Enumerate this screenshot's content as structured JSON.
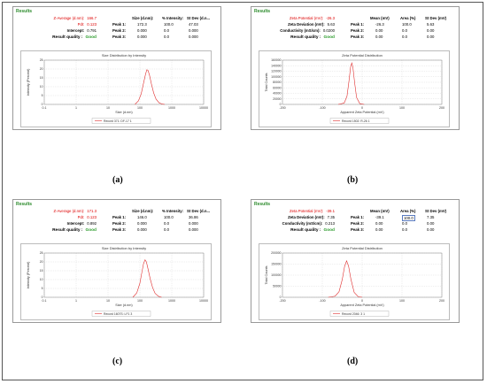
{
  "panels": [
    {
      "id": "a",
      "caption": "(a)",
      "header": "Results",
      "summary_left": [
        {
          "label": "Z-Average (d.nm):",
          "value": "166.7",
          "red": true
        },
        {
          "label": "PdI:",
          "value": "0.123",
          "red": true
        },
        {
          "label": "Intercept:",
          "value": "0.791",
          "red": false
        },
        {
          "label": "Result quality :",
          "value": "Good",
          "quality": true
        }
      ],
      "table_headers": [
        "Size (d.nm):",
        "% Intensity:",
        "St Dev (d.n..."
      ],
      "table_rows": [
        {
          "label": "Peak 1:",
          "cells": [
            "172.3",
            "100.0",
            "47.03"
          ]
        },
        {
          "label": "Peak 2:",
          "cells": [
            "0.000",
            "0.0",
            "0.000"
          ]
        },
        {
          "label": "Peak 3:",
          "cells": [
            "0.000",
            "0.0",
            "0.000"
          ]
        }
      ]
    },
    {
      "id": "b",
      "caption": "(b)",
      "header": "Results",
      "summary_left": [
        {
          "label": "Zeta Potential (mV):",
          "value": "-26.3",
          "red": true
        },
        {
          "label": "Zeta Deviation (mV):",
          "value": "5.63",
          "red": false
        },
        {
          "label": "Conductivity (mS/cm):",
          "value": "0.0200",
          "red": false
        },
        {
          "label": "Result quality :",
          "value": "Good",
          "quality": true
        }
      ],
      "table_headers": [
        "Mean (mV)",
        "Area (%)",
        "St Dev (mV)"
      ],
      "table_rows": [
        {
          "label": "Peak 1:",
          "cells": [
            "-26.3",
            "100.0",
            "5.63"
          ]
        },
        {
          "label": "Peak 2:",
          "cells": [
            "0.00",
            "0.0",
            "0.00"
          ]
        },
        {
          "label": "Peak 3:",
          "cells": [
            "0.00",
            "0.0",
            "0.00"
          ]
        }
      ]
    },
    {
      "id": "c",
      "caption": "(c)",
      "header": "Results",
      "summary_left": [
        {
          "label": "Z-Average (d.nm):",
          "value": "171.3",
          "red": true
        },
        {
          "label": "PdI:",
          "value": "0.123",
          "red": true
        },
        {
          "label": "Intercept:",
          "value": "0.892",
          "red": false
        },
        {
          "label": "Result quality :",
          "value": "Good",
          "quality": true
        }
      ],
      "table_headers": [
        "Size (d.nm):",
        "% Intensity:",
        "St Dev (d.n..."
      ],
      "table_rows": [
        {
          "label": "Peak 1:",
          "cells": [
            "146.0",
            "100.0",
            "36.86"
          ]
        },
        {
          "label": "Peak 2:",
          "cells": [
            "0.000",
            "0.0",
            "0.000"
          ]
        },
        {
          "label": "Peak 3:",
          "cells": [
            "0.000",
            "0.0",
            "0.000"
          ]
        }
      ]
    },
    {
      "id": "d",
      "caption": "(d)",
      "header": "Results",
      "summary_left": [
        {
          "label": "Zeta Potential (mV):",
          "value": "-39.1",
          "red": true
        },
        {
          "label": "Zeta Deviation (mV):",
          "value": "7.35",
          "red": false
        },
        {
          "label": "Conductivity (mS/cm):",
          "value": "0.213",
          "red": false
        },
        {
          "label": "Result quality :",
          "value": "Good",
          "quality": true
        }
      ],
      "table_headers": [
        "Mean (mV)",
        "Area (%)",
        "St Dev (mV)"
      ],
      "table_rows": [
        {
          "label": "Peak 1:",
          "cells": [
            "-39.1",
            "100.0",
            "7.35"
          ]
        },
        {
          "label": "Peak 2:",
          "cells": [
            "0.00",
            "0.0",
            "0.00"
          ]
        },
        {
          "label": "Peak 3:",
          "cells": [
            "0.00",
            "0.0",
            "0.00"
          ]
        }
      ]
    }
  ],
  "chart_data": [
    {
      "panel": "a",
      "type": "line",
      "title": "Size Distribution by Intensity",
      "xlabel": "Size (d.nm)",
      "ylabel": "Intensity (Percent)",
      "xscale": "log",
      "xlim": [
        0.1,
        10000
      ],
      "ylim": [
        0,
        25
      ],
      "xticks": [
        "0.1",
        "1",
        "10",
        "100",
        "1000",
        "10000"
      ],
      "yticks": [
        "0",
        "5",
        "10",
        "15",
        "20",
        "25"
      ],
      "grid": true,
      "legend": "Record 371: DF-17 1",
      "legend_position": "bottom",
      "series": [
        {
          "color": "#e03030",
          "x": [
            70,
            90,
            110,
            130,
            150,
            165,
            180,
            200,
            230,
            270,
            320,
            400,
            500,
            600
          ],
          "y": [
            0,
            2,
            6,
            12,
            17,
            19.6,
            19.2,
            16.5,
            11.5,
            6.5,
            3.0,
            0.9,
            0.2,
            0
          ]
        }
      ]
    },
    {
      "panel": "b",
      "type": "line",
      "title": "Zeta Potential Distribution",
      "xlabel": "Apparent Zeta Potential (mV)",
      "ylabel": "Total Counts",
      "xlim": [
        -200,
        200
      ],
      "ylim": [
        0,
        160000
      ],
      "xticks": [
        "-200",
        "-100",
        "0",
        "100",
        "200"
      ],
      "yticks": [
        "0",
        "20000",
        "40000",
        "60000",
        "80000",
        "100000",
        "120000",
        "140000",
        "160000"
      ],
      "grid": true,
      "legend": "Record 1502: R-26 1",
      "legend_position": "bottom",
      "series": [
        {
          "color": "#e03030",
          "x": [
            -60,
            -45,
            -38,
            -33,
            -29,
            -26,
            -23,
            -19,
            -14,
            -6,
            5
          ],
          "y": [
            0,
            5000,
            30000,
            85000,
            135000,
            150000,
            132000,
            80000,
            25000,
            3000,
            0
          ]
        }
      ]
    },
    {
      "panel": "c",
      "type": "line",
      "title": "Size Distribution by Intensity",
      "xlabel": "Size (d.nm)",
      "ylabel": "Intensity (Percent)",
      "xscale": "log",
      "xlim": [
        0.1,
        10000
      ],
      "ylim": [
        0,
        25
      ],
      "xticks": [
        "0.1",
        "1",
        "10",
        "100",
        "1000",
        "10000"
      ],
      "yticks": [
        "0",
        "5",
        "10",
        "15",
        "20",
        "25"
      ],
      "grid": true,
      "legend": "Record 1607S: LF1 3",
      "legend_position": "bottom",
      "series": [
        {
          "color": "#e03030",
          "x": [
            60,
            80,
            100,
            115,
            130,
            145,
            160,
            180,
            210,
            250,
            300,
            380,
            480
          ],
          "y": [
            0,
            2.5,
            8,
            14,
            19,
            21.2,
            20,
            16,
            10.5,
            5.5,
            2.2,
            0.6,
            0
          ]
        }
      ]
    },
    {
      "panel": "d",
      "type": "line",
      "title": "Zeta Potential Distribution",
      "xlabel": "Apparent Zeta Potential (mV)",
      "ylabel": "Total Counts",
      "xlim": [
        -200,
        200
      ],
      "ylim": [
        0,
        200000
      ],
      "xticks": [
        "-200",
        "-100",
        "0",
        "100",
        "200"
      ],
      "yticks": [
        "0",
        "50000",
        "100000",
        "150000",
        "200000"
      ],
      "grid": true,
      "legend": "Record 2046: 3 1",
      "legend_position": "bottom",
      "series": [
        {
          "color": "#e03030",
          "x": [
            -85,
            -68,
            -58,
            -50,
            -44,
            -39,
            -34,
            -28,
            -20,
            -10,
            0
          ],
          "y": [
            0,
            5000,
            25000,
            80000,
            140000,
            165000,
            140000,
            80000,
            22000,
            3000,
            0
          ]
        }
      ]
    }
  ]
}
